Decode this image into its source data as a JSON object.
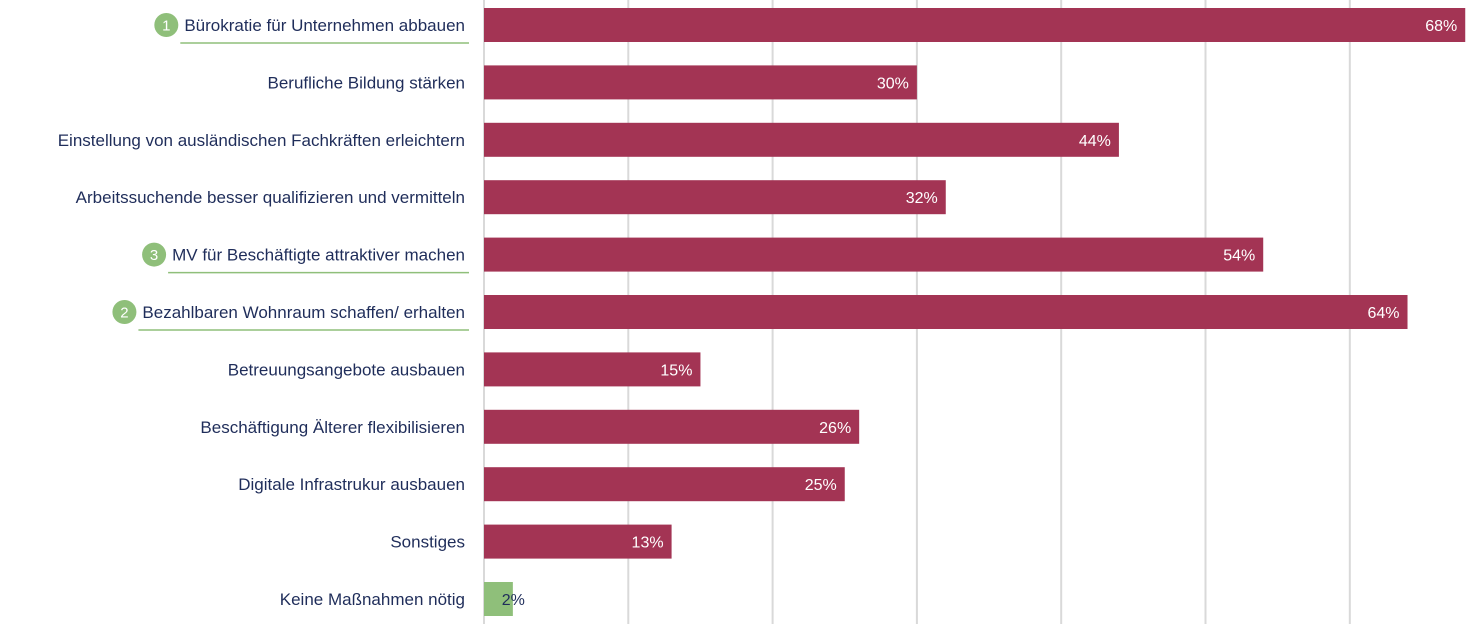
{
  "chart_data": {
    "type": "bar",
    "orientation": "horizontal",
    "categories": [
      "Bürokratie für Unternehmen abbauen",
      "Berufliche Bildung stärken",
      "Einstellung von ausländischen Fachkräften erleichtern",
      "Arbeitssuchende besser qualifizieren und vermitteln",
      "MV für Beschäftigte attraktiver machen",
      "Bezahlbaren Wohnraum schaffen/ erhalten",
      "Betreuungsangebote ausbauen",
      "Beschäftigung Älterer flexibilisieren",
      "Digitale Infrastrukur ausbauen",
      "Sonstiges",
      "Keine Maßnahmen nötig"
    ],
    "values": [
      68,
      30,
      44,
      32,
      54,
      64,
      15,
      26,
      25,
      13,
      2
    ],
    "value_labels": [
      "68%",
      "30%",
      "44%",
      "32%",
      "54%",
      "64%",
      "15%",
      "26%",
      "25%",
      "13%",
      "2%"
    ],
    "ranks": [
      1,
      null,
      null,
      null,
      3,
      2,
      null,
      null,
      null,
      null,
      null
    ],
    "xlim": [
      0,
      70
    ],
    "grid": true,
    "bar_color": "#a33454",
    "highlight_color": "#8fbf7a",
    "highlight_index": 10,
    "label_color": "#1f2d5a",
    "grid_color": "#d9d9d9"
  }
}
